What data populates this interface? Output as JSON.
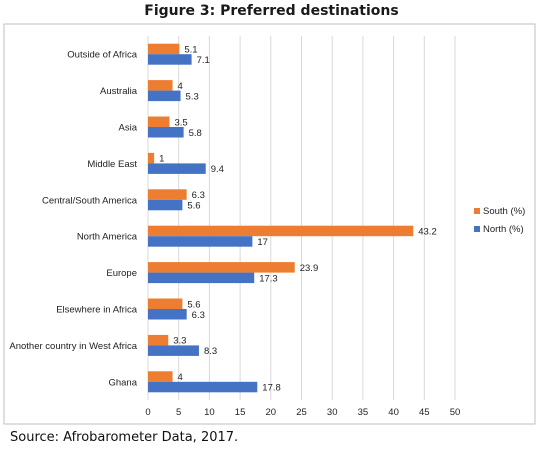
{
  "figure": {
    "title": "Figure 3: Preferred destinations",
    "source": "Source: Afrobarometer Data, 2017."
  },
  "chart_data": {
    "type": "bar",
    "orientation": "horizontal",
    "title": "Figure 3: Preferred destinations",
    "xlabel": "",
    "ylabel": "",
    "xlim": [
      0,
      50
    ],
    "xticks": [
      0,
      5,
      10,
      15,
      20,
      25,
      30,
      35,
      40,
      45,
      50
    ],
    "grid": "vertical",
    "legend": "right",
    "categories": [
      "Outside of Africa",
      "Australia",
      "Asia",
      "Middle East",
      "Central/South America",
      "North America",
      "Europe",
      "Elsewhere in Africa",
      "Another country in West Africa",
      "Ghana"
    ],
    "series": [
      {
        "name": "South (%)",
        "color": "#ED7D31",
        "values": [
          5.1,
          4,
          3.5,
          1,
          6.3,
          43.2,
          23.9,
          5.6,
          3.3,
          4
        ]
      },
      {
        "name": "North (%)",
        "color": "#4472C4",
        "values": [
          7.1,
          5.3,
          5.8,
          9.4,
          5.6,
          17,
          17.3,
          6.3,
          8.3,
          17.8
        ]
      }
    ]
  }
}
